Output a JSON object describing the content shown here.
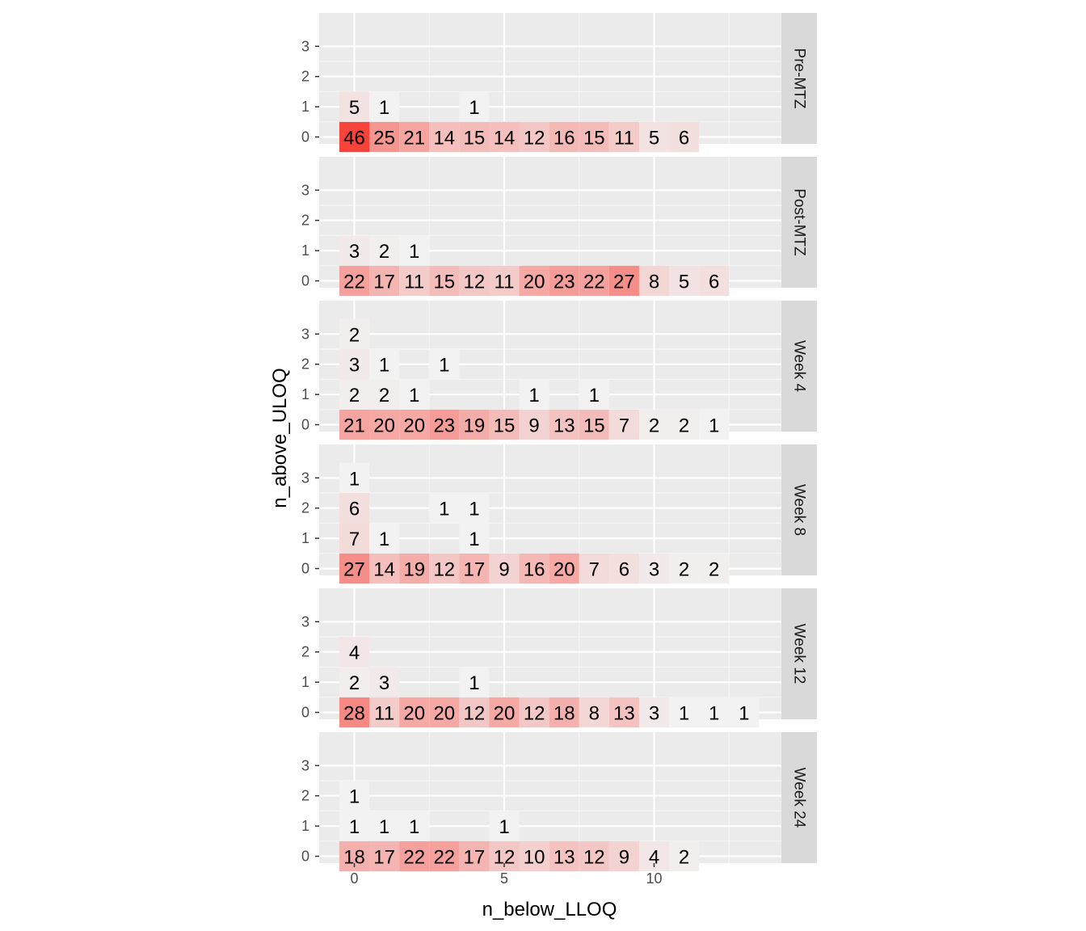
{
  "chart_data": {
    "type": "heatmap",
    "xlabel": "n_below_LLOQ",
    "ylabel": "n_above_ULOQ",
    "x_ticks": [
      0,
      5,
      10
    ],
    "y_ticks": [
      0,
      1,
      2,
      3
    ],
    "xlim": [
      -1,
      14.5
    ],
    "ylim": [
      -0.6,
      3.5
    ],
    "fill_scale": {
      "low": "#f2f2f2",
      "high": "#f8433a",
      "min": 1,
      "max": 46
    },
    "facets": [
      {
        "label": "Pre-MTZ",
        "cells": [
          {
            "x": 0,
            "y": 0,
            "n": 46
          },
          {
            "x": 1,
            "y": 0,
            "n": 25
          },
          {
            "x": 2,
            "y": 0,
            "n": 21
          },
          {
            "x": 3,
            "y": 0,
            "n": 14
          },
          {
            "x": 4,
            "y": 0,
            "n": 15
          },
          {
            "x": 5,
            "y": 0,
            "n": 14
          },
          {
            "x": 6,
            "y": 0,
            "n": 12
          },
          {
            "x": 7,
            "y": 0,
            "n": 16
          },
          {
            "x": 8,
            "y": 0,
            "n": 15
          },
          {
            "x": 9,
            "y": 0,
            "n": 11
          },
          {
            "x": 10,
            "y": 0,
            "n": 5
          },
          {
            "x": 11,
            "y": 0,
            "n": 6
          },
          {
            "x": 0,
            "y": 1,
            "n": 5
          },
          {
            "x": 1,
            "y": 1,
            "n": 1
          },
          {
            "x": 4,
            "y": 1,
            "n": 1
          }
        ]
      },
      {
        "label": "Post-MTZ",
        "cells": [
          {
            "x": 0,
            "y": 0,
            "n": 22
          },
          {
            "x": 1,
            "y": 0,
            "n": 17
          },
          {
            "x": 2,
            "y": 0,
            "n": 11
          },
          {
            "x": 3,
            "y": 0,
            "n": 15
          },
          {
            "x": 4,
            "y": 0,
            "n": 12
          },
          {
            "x": 5,
            "y": 0,
            "n": 11
          },
          {
            "x": 6,
            "y": 0,
            "n": 20
          },
          {
            "x": 7,
            "y": 0,
            "n": 23
          },
          {
            "x": 8,
            "y": 0,
            "n": 22
          },
          {
            "x": 9,
            "y": 0,
            "n": 27
          },
          {
            "x": 10,
            "y": 0,
            "n": 8
          },
          {
            "x": 11,
            "y": 0,
            "n": 5
          },
          {
            "x": 12,
            "y": 0,
            "n": 6
          },
          {
            "x": 0,
            "y": 1,
            "n": 3
          },
          {
            "x": 1,
            "y": 1,
            "n": 2
          },
          {
            "x": 2,
            "y": 1,
            "n": 1
          }
        ]
      },
      {
        "label": "Week 4",
        "cells": [
          {
            "x": 0,
            "y": 0,
            "n": 21
          },
          {
            "x": 1,
            "y": 0,
            "n": 20
          },
          {
            "x": 2,
            "y": 0,
            "n": 20
          },
          {
            "x": 3,
            "y": 0,
            "n": 23
          },
          {
            "x": 4,
            "y": 0,
            "n": 19
          },
          {
            "x": 5,
            "y": 0,
            "n": 15
          },
          {
            "x": 6,
            "y": 0,
            "n": 9
          },
          {
            "x": 7,
            "y": 0,
            "n": 13
          },
          {
            "x": 8,
            "y": 0,
            "n": 15
          },
          {
            "x": 9,
            "y": 0,
            "n": 7
          },
          {
            "x": 10,
            "y": 0,
            "n": 2
          },
          {
            "x": 11,
            "y": 0,
            "n": 2
          },
          {
            "x": 12,
            "y": 0,
            "n": 1
          },
          {
            "x": 0,
            "y": 1,
            "n": 2
          },
          {
            "x": 1,
            "y": 1,
            "n": 2
          },
          {
            "x": 2,
            "y": 1,
            "n": 1
          },
          {
            "x": 6,
            "y": 1,
            "n": 1
          },
          {
            "x": 8,
            "y": 1,
            "n": 1
          },
          {
            "x": 0,
            "y": 2,
            "n": 3
          },
          {
            "x": 1,
            "y": 2,
            "n": 1
          },
          {
            "x": 3,
            "y": 2,
            "n": 1
          },
          {
            "x": 0,
            "y": 3,
            "n": 2
          }
        ]
      },
      {
        "label": "Week 8",
        "cells": [
          {
            "x": 0,
            "y": 0,
            "n": 27
          },
          {
            "x": 1,
            "y": 0,
            "n": 14
          },
          {
            "x": 2,
            "y": 0,
            "n": 19
          },
          {
            "x": 3,
            "y": 0,
            "n": 12
          },
          {
            "x": 4,
            "y": 0,
            "n": 17
          },
          {
            "x": 5,
            "y": 0,
            "n": 9
          },
          {
            "x": 6,
            "y": 0,
            "n": 16
          },
          {
            "x": 7,
            "y": 0,
            "n": 20
          },
          {
            "x": 8,
            "y": 0,
            "n": 7
          },
          {
            "x": 9,
            "y": 0,
            "n": 6
          },
          {
            "x": 10,
            "y": 0,
            "n": 3
          },
          {
            "x": 11,
            "y": 0,
            "n": 2
          },
          {
            "x": 12,
            "y": 0,
            "n": 2
          },
          {
            "x": 0,
            "y": 1,
            "n": 7
          },
          {
            "x": 1,
            "y": 1,
            "n": 1
          },
          {
            "x": 4,
            "y": 1,
            "n": 1
          },
          {
            "x": 0,
            "y": 2,
            "n": 6
          },
          {
            "x": 3,
            "y": 2,
            "n": 1
          },
          {
            "x": 4,
            "y": 2,
            "n": 1
          },
          {
            "x": 0,
            "y": 3,
            "n": 1
          }
        ]
      },
      {
        "label": "Week 12",
        "cells": [
          {
            "x": 0,
            "y": 0,
            "n": 28
          },
          {
            "x": 1,
            "y": 0,
            "n": 11
          },
          {
            "x": 2,
            "y": 0,
            "n": 20
          },
          {
            "x": 3,
            "y": 0,
            "n": 20
          },
          {
            "x": 4,
            "y": 0,
            "n": 12
          },
          {
            "x": 5,
            "y": 0,
            "n": 20
          },
          {
            "x": 6,
            "y": 0,
            "n": 12
          },
          {
            "x": 7,
            "y": 0,
            "n": 18
          },
          {
            "x": 8,
            "y": 0,
            "n": 8
          },
          {
            "x": 9,
            "y": 0,
            "n": 13
          },
          {
            "x": 10,
            "y": 0,
            "n": 3
          },
          {
            "x": 11,
            "y": 0,
            "n": 1
          },
          {
            "x": 12,
            "y": 0,
            "n": 1
          },
          {
            "x": 13,
            "y": 0,
            "n": 1
          },
          {
            "x": 0,
            "y": 1,
            "n": 2
          },
          {
            "x": 1,
            "y": 1,
            "n": 3
          },
          {
            "x": 4,
            "y": 1,
            "n": 1
          },
          {
            "x": 0,
            "y": 2,
            "n": 4
          }
        ]
      },
      {
        "label": "Week 24",
        "cells": [
          {
            "x": 0,
            "y": 0,
            "n": 18
          },
          {
            "x": 1,
            "y": 0,
            "n": 17
          },
          {
            "x": 2,
            "y": 0,
            "n": 22
          },
          {
            "x": 3,
            "y": 0,
            "n": 22
          },
          {
            "x": 4,
            "y": 0,
            "n": 17
          },
          {
            "x": 5,
            "y": 0,
            "n": 12
          },
          {
            "x": 6,
            "y": 0,
            "n": 10
          },
          {
            "x": 7,
            "y": 0,
            "n": 13
          },
          {
            "x": 8,
            "y": 0,
            "n": 12
          },
          {
            "x": 9,
            "y": 0,
            "n": 9
          },
          {
            "x": 10,
            "y": 0,
            "n": 4
          },
          {
            "x": 11,
            "y": 0,
            "n": 2
          },
          {
            "x": 0,
            "y": 1,
            "n": 1
          },
          {
            "x": 1,
            "y": 1,
            "n": 1
          },
          {
            "x": 2,
            "y": 1,
            "n": 1
          },
          {
            "x": 5,
            "y": 1,
            "n": 1
          },
          {
            "x": 0,
            "y": 2,
            "n": 1
          }
        ]
      }
    ]
  }
}
